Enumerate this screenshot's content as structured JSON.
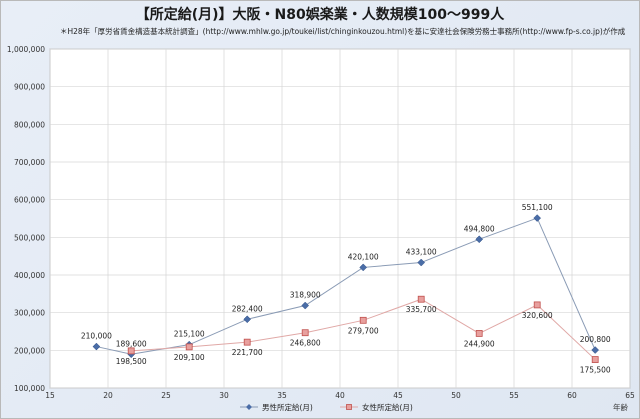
{
  "chart_data": {
    "type": "line",
    "title": "【所定給(月)】大阪・N80娯楽業・人数規模100～999人",
    "subtitle": "＊H28年「厚労省賃金構造基本統計調査」(http://www.mhlw.go.jp/toukei/list/chinginkouzou.html)を基に安達社会保険労務士事務所(http://www.fp-s.co.jp)が作成",
    "xlabel": "年齢",
    "ylabel": "",
    "xlim": [
      15,
      65
    ],
    "ylim": [
      100000,
      1000000
    ],
    "x_ticks": [
      "15",
      "20",
      "25",
      "30",
      "35",
      "40",
      "45",
      "50",
      "55",
      "60",
      "65"
    ],
    "y_ticks": [
      "100,000",
      "200,000",
      "300,000",
      "400,000",
      "500,000",
      "600,000",
      "700,000",
      "800,000",
      "900,000",
      "1,000,000"
    ],
    "grid": true,
    "legend_position": "bottom",
    "series": [
      {
        "name": "男性所定給(月)",
        "color": "#4a6da7",
        "marker": "diamond",
        "x": [
          19,
          22,
          27,
          32,
          37,
          42,
          47,
          52,
          57,
          62
        ],
        "values": [
          210000,
          189600,
          215100,
          282400,
          318900,
          420100,
          433100,
          494800,
          551100,
          200800
        ],
        "labels": [
          "210,000",
          "189,600",
          "215,100",
          "282,400",
          "318,900",
          "420,100",
          "433,100",
          "494,800",
          "551,100",
          "200,800"
        ]
      },
      {
        "name": "女性所定給(月)",
        "color": "#c0504d",
        "marker": "square",
        "x": [
          22,
          27,
          32,
          37,
          42,
          47,
          52,
          57,
          62
        ],
        "values": [
          198500,
          209100,
          221700,
          246800,
          279700,
          335700,
          244900,
          320600,
          175500
        ],
        "labels": [
          "198,500",
          "209,100",
          "221,700",
          "246,800",
          "279,700",
          "335,700",
          "244,900",
          "320,600",
          "175,500"
        ]
      }
    ]
  }
}
